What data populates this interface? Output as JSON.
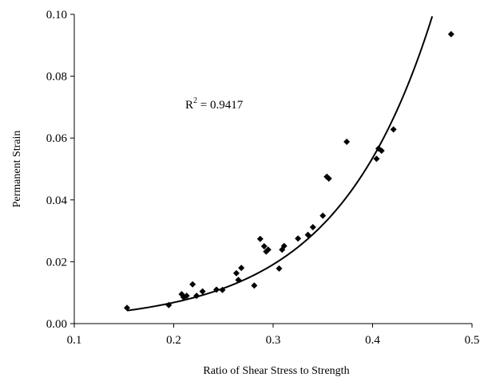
{
  "chart_data": {
    "type": "scatter",
    "title": "",
    "xlabel": "Ratio of Shear Stress to Strength",
    "ylabel": "Permanent Strain",
    "xlim": [
      0.1,
      0.5
    ],
    "ylim": [
      0.0,
      0.1
    ],
    "x_ticks": [
      0.1,
      0.2,
      0.3,
      0.4,
      0.5
    ],
    "x_tick_labels": [
      "0.1",
      "0.2",
      "0.3",
      "0.4",
      "0.5"
    ],
    "y_ticks": [
      0.0,
      0.02,
      0.04,
      0.06,
      0.08,
      0.1
    ],
    "y_tick_labels": [
      "0.00",
      "0.02",
      "0.04",
      "0.06",
      "0.08",
      "0.10"
    ],
    "grid": false,
    "legend": "none",
    "marker": "diamond",
    "marker_color": "#000000",
    "points": [
      {
        "x": 0.153,
        "y": 0.0051
      },
      {
        "x": 0.195,
        "y": 0.006
      },
      {
        "x": 0.208,
        "y": 0.0095
      },
      {
        "x": 0.21,
        "y": 0.0085
      },
      {
        "x": 0.213,
        "y": 0.009
      },
      {
        "x": 0.219,
        "y": 0.0127
      },
      {
        "x": 0.223,
        "y": 0.009
      },
      {
        "x": 0.229,
        "y": 0.0104
      },
      {
        "x": 0.243,
        "y": 0.011
      },
      {
        "x": 0.249,
        "y": 0.0109
      },
      {
        "x": 0.263,
        "y": 0.0163
      },
      {
        "x": 0.265,
        "y": 0.0141
      },
      {
        "x": 0.268,
        "y": 0.018
      },
      {
        "x": 0.281,
        "y": 0.0123
      },
      {
        "x": 0.287,
        "y": 0.0274
      },
      {
        "x": 0.291,
        "y": 0.025
      },
      {
        "x": 0.293,
        "y": 0.0233
      },
      {
        "x": 0.295,
        "y": 0.0239
      },
      {
        "x": 0.306,
        "y": 0.0178
      },
      {
        "x": 0.309,
        "y": 0.0239
      },
      {
        "x": 0.311,
        "y": 0.0251
      },
      {
        "x": 0.325,
        "y": 0.0275
      },
      {
        "x": 0.335,
        "y": 0.0287
      },
      {
        "x": 0.34,
        "y": 0.0312
      },
      {
        "x": 0.35,
        "y": 0.0349
      },
      {
        "x": 0.354,
        "y": 0.0475
      },
      {
        "x": 0.356,
        "y": 0.0469
      },
      {
        "x": 0.374,
        "y": 0.0588
      },
      {
        "x": 0.404,
        "y": 0.0533
      },
      {
        "x": 0.406,
        "y": 0.0566
      },
      {
        "x": 0.409,
        "y": 0.0559
      },
      {
        "x": 0.421,
        "y": 0.0628
      },
      {
        "x": 0.479,
        "y": 0.0936
      }
    ],
    "trendline": {
      "type": "exponential",
      "a": 0.00087,
      "b": 10.3,
      "x_range": [
        0.153,
        0.46
      ],
      "color": "#000000",
      "annotation_base": "R",
      "annotation_sup": "2",
      "annotation_value": " = 0.9417"
    }
  }
}
